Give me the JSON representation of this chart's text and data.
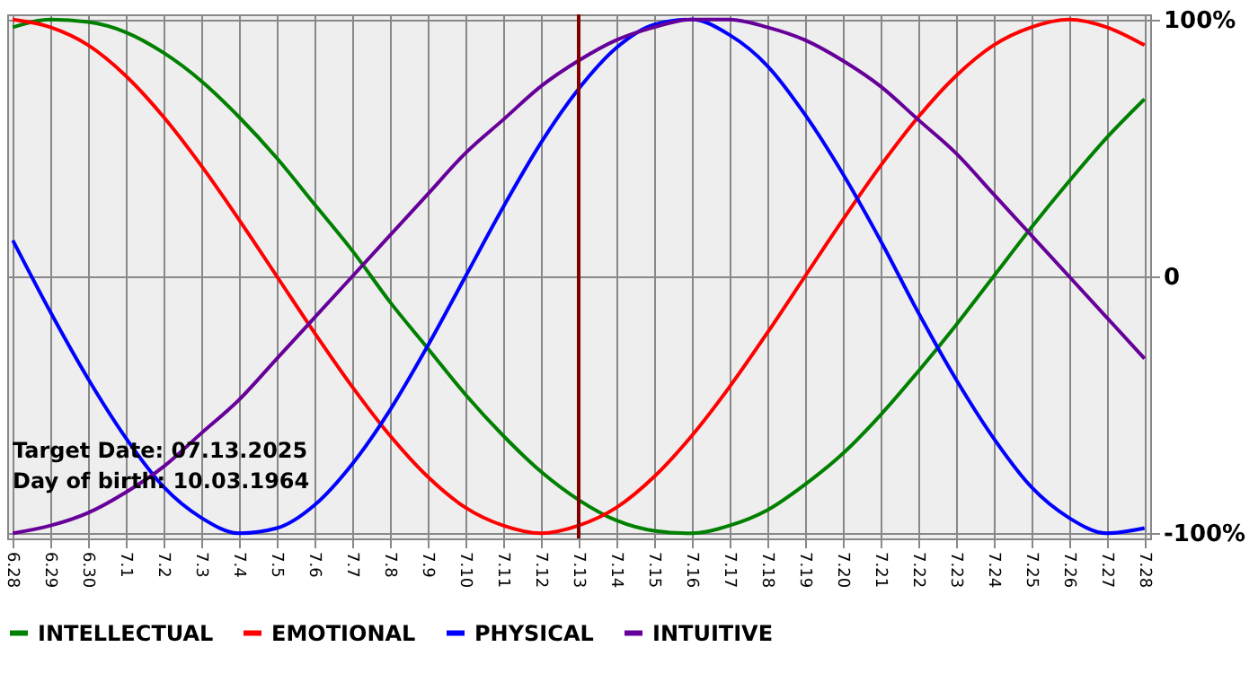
{
  "chart_data": {
    "type": "line",
    "categories": [
      "6.28",
      "6.29",
      "6.30",
      "7.1",
      "7.2",
      "7.3",
      "7.4",
      "7.5",
      "7.6",
      "7.7",
      "7.8",
      "7.9",
      "7.10",
      "7.11",
      "7.12",
      "7.13",
      "7.14",
      "7.15",
      "7.16",
      "7.17",
      "7.18",
      "7.19",
      "7.20",
      "7.21",
      "7.22",
      "7.23",
      "7.24",
      "7.25",
      "7.26",
      "7.27",
      "7.28"
    ],
    "series": [
      {
        "name": "INTELLECTUAL",
        "color": "#008000",
        "values": [
          97,
          100,
          99,
          95,
          87,
          76,
          62,
          46,
          28,
          10,
          -10,
          -28,
          -46,
          -62,
          -76,
          -87,
          -95,
          -99,
          -100,
          -97,
          -91,
          -81,
          -69,
          -54,
          -37,
          -19,
          0,
          19,
          37,
          54,
          69
        ]
      },
      {
        "name": "EMOTIONAL",
        "color": "#ff0000",
        "values": [
          100,
          97,
          90,
          78,
          62,
          43,
          22,
          0,
          -22,
          -43,
          -62,
          -78,
          -90,
          -97,
          -100,
          -97,
          -90,
          -78,
          -62,
          -43,
          -22,
          0,
          22,
          43,
          62,
          78,
          90,
          97,
          100,
          97,
          90
        ]
      },
      {
        "name": "PHYSICAL",
        "color": "#0000ff",
        "values": [
          14,
          -14,
          -40,
          -63,
          -82,
          -94,
          -100,
          -98,
          -89,
          -73,
          -52,
          -27,
          0,
          27,
          52,
          73,
          89,
          98,
          100,
          94,
          82,
          63,
          40,
          14,
          -14,
          -40,
          -63,
          -82,
          -94,
          -100,
          -98
        ]
      },
      {
        "name": "INTUITIVE",
        "color": "#660099",
        "values": [
          -100,
          -97,
          -92,
          -84,
          -74,
          -61,
          -48,
          -32,
          -16,
          0,
          16,
          32,
          48,
          61,
          74,
          84,
          92,
          97,
          100,
          100,
          97,
          92,
          84,
          74,
          61,
          48,
          32,
          16,
          0,
          -16,
          -32
        ]
      }
    ],
    "ylim": [
      -102,
      102
    ],
    "yticks": [
      {
        "value": 100,
        "label": "100%"
      },
      0,
      {
        "value": -100,
        "label": "-100%"
      }
    ],
    "grid": true,
    "legend": "bottom left",
    "marker": "none",
    "ref_lines": [
      {
        "axis": "x",
        "value": "7.13",
        "color": "#800000"
      }
    ],
    "annotations": [
      "Target Date: 07.13.2025",
      "Day of birth: 10.03.1964"
    ]
  }
}
